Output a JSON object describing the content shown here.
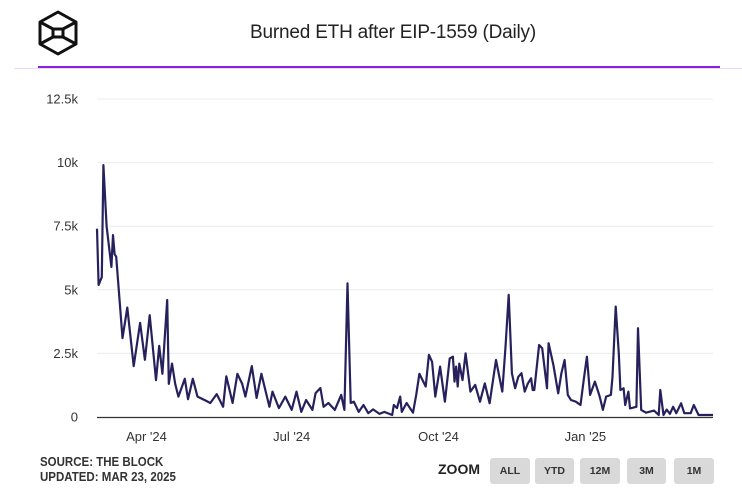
{
  "header": {
    "title": "Burned ETH after EIP-1559 (Daily)",
    "logo": "the-block-cube-logo"
  },
  "footer": {
    "source": "SOURCE: THE BLOCK",
    "updated": "UPDATED: MAR 23, 2025"
  },
  "zoom": {
    "label": "ZOOM",
    "buttons": [
      "ALL",
      "YTD",
      "12M",
      "3M",
      "1M"
    ]
  },
  "colors": {
    "line": "#26215c",
    "accent_rule": "#8a1fe0",
    "button_bg": "#d9d9d9"
  },
  "chart_data": {
    "type": "line",
    "title": "Burned ETH after EIP-1559 (Daily)",
    "xlabel": "",
    "ylabel": "",
    "xlim": [
      "2024-03-01",
      "2025-03-22"
    ],
    "ylim": [
      0,
      12500
    ],
    "grid": true,
    "x_ticks": [
      {
        "date": "2024-04-01",
        "label": "Apr '24"
      },
      {
        "date": "2024-07-01",
        "label": "Jul '24"
      },
      {
        "date": "2024-10-01",
        "label": "Oct '24"
      },
      {
        "date": "2025-01-01",
        "label": "Jan '25"
      }
    ],
    "y_ticks": [
      {
        "value": 0,
        "label": "0"
      },
      {
        "value": 2500,
        "label": "2.5k"
      },
      {
        "value": 5000,
        "label": "5k"
      },
      {
        "value": 7500,
        "label": "7.5k"
      },
      {
        "value": 10000,
        "label": "10k"
      },
      {
        "value": 12500,
        "label": "12.5k"
      }
    ],
    "points": [
      [
        "2024-03-01",
        7400
      ],
      [
        "2024-03-02",
        5190
      ],
      [
        "2024-03-04",
        5500
      ],
      [
        "2024-03-05",
        9900
      ],
      [
        "2024-03-07",
        7500
      ],
      [
        "2024-03-10",
        5900
      ],
      [
        "2024-03-11",
        7150
      ],
      [
        "2024-03-12",
        6400
      ],
      [
        "2024-03-13",
        6300
      ],
      [
        "2024-03-17",
        3100
      ],
      [
        "2024-03-20",
        4300
      ],
      [
        "2024-03-24",
        2000
      ],
      [
        "2024-03-28",
        3700
      ],
      [
        "2024-03-31",
        2250
      ],
      [
        "2024-04-03",
        4000
      ],
      [
        "2024-04-07",
        1450
      ],
      [
        "2024-04-09",
        2800
      ],
      [
        "2024-04-11",
        1700
      ],
      [
        "2024-04-14",
        4600
      ],
      [
        "2024-04-15",
        1300
      ],
      [
        "2024-04-17",
        2100
      ],
      [
        "2024-04-19",
        1300
      ],
      [
        "2024-04-21",
        800
      ],
      [
        "2024-04-25",
        1500
      ],
      [
        "2024-04-27",
        700
      ],
      [
        "2024-04-30",
        1500
      ],
      [
        "2024-05-03",
        800
      ],
      [
        "2024-05-08",
        650
      ],
      [
        "2024-05-11",
        550
      ],
      [
        "2024-05-15",
        900
      ],
      [
        "2024-05-19",
        400
      ],
      [
        "2024-05-21",
        1600
      ],
      [
        "2024-05-25",
        550
      ],
      [
        "2024-05-28",
        1700
      ],
      [
        "2024-05-31",
        1300
      ],
      [
        "2024-06-02",
        800
      ],
      [
        "2024-06-06",
        2000
      ],
      [
        "2024-06-09",
        750
      ],
      [
        "2024-06-12",
        1700
      ],
      [
        "2024-06-17",
        400
      ],
      [
        "2024-06-19",
        1000
      ],
      [
        "2024-06-23",
        350
      ],
      [
        "2024-06-27",
        800
      ],
      [
        "2024-07-01",
        280
      ],
      [
        "2024-07-04",
        1000
      ],
      [
        "2024-07-07",
        200
      ],
      [
        "2024-07-10",
        670
      ],
      [
        "2024-07-14",
        280
      ],
      [
        "2024-07-16",
        940
      ],
      [
        "2024-07-19",
        1140
      ],
      [
        "2024-07-21",
        400
      ],
      [
        "2024-07-24",
        550
      ],
      [
        "2024-07-28",
        280
      ],
      [
        "2024-08-01",
        870
      ],
      [
        "2024-08-03",
        280
      ],
      [
        "2024-08-05",
        5250
      ],
      [
        "2024-08-07",
        550
      ],
      [
        "2024-08-09",
        600
      ],
      [
        "2024-08-12",
        200
      ],
      [
        "2024-08-15",
        470
      ],
      [
        "2024-08-18",
        150
      ],
      [
        "2024-08-21",
        300
      ],
      [
        "2024-08-25",
        120
      ],
      [
        "2024-08-28",
        200
      ],
      [
        "2024-09-02",
        80
      ],
      [
        "2024-09-03",
        470
      ],
      [
        "2024-09-05",
        350
      ],
      [
        "2024-09-07",
        800
      ],
      [
        "2024-09-08",
        200
      ],
      [
        "2024-09-11",
        550
      ],
      [
        "2024-09-15",
        170
      ],
      [
        "2024-09-17",
        870
      ],
      [
        "2024-09-19",
        1700
      ],
      [
        "2024-09-23",
        1200
      ],
      [
        "2024-09-25",
        2440
      ],
      [
        "2024-09-27",
        2170
      ],
      [
        "2024-09-29",
        800
      ],
      [
        "2024-10-02",
        1980
      ],
      [
        "2024-10-05",
        600
      ],
      [
        "2024-10-08",
        2300
      ],
      [
        "2024-10-10",
        2370
      ],
      [
        "2024-10-11",
        1390
      ],
      [
        "2024-10-12",
        1980
      ],
      [
        "2024-10-13",
        1200
      ],
      [
        "2024-10-14",
        2100
      ],
      [
        "2024-10-16",
        1450
      ],
      [
        "2024-10-18",
        2500
      ],
      [
        "2024-10-21",
        1000
      ],
      [
        "2024-10-24",
        1260
      ],
      [
        "2024-10-27",
        600
      ],
      [
        "2024-10-30",
        1320
      ],
      [
        "2024-11-02",
        540
      ],
      [
        "2024-11-06",
        2240
      ],
      [
        "2024-11-10",
        1000
      ],
      [
        "2024-11-12",
        2760
      ],
      [
        "2024-11-14",
        4800
      ],
      [
        "2024-11-16",
        1720
      ],
      [
        "2024-11-18",
        1130
      ],
      [
        "2024-11-20",
        1580
      ],
      [
        "2024-11-22",
        1720
      ],
      [
        "2024-11-24",
        1000
      ],
      [
        "2024-11-26",
        1320
      ],
      [
        "2024-11-28",
        1520
      ],
      [
        "2024-11-29",
        1060
      ],
      [
        "2024-11-30",
        1060
      ],
      [
        "2024-12-03",
        2830
      ],
      [
        "2024-12-05",
        2700
      ],
      [
        "2024-12-08",
        1130
      ],
      [
        "2024-12-09",
        2900
      ],
      [
        "2024-12-12",
        2040
      ],
      [
        "2024-12-15",
        930
      ],
      [
        "2024-12-17",
        1720
      ],
      [
        "2024-12-19",
        2240
      ],
      [
        "2024-12-21",
        870
      ],
      [
        "2024-12-23",
        670
      ],
      [
        "2024-12-26",
        600
      ],
      [
        "2024-12-29",
        470
      ],
      [
        "2024-12-31",
        1450
      ],
      [
        "2025-01-02",
        2370
      ],
      [
        "2025-01-04",
        870
      ],
      [
        "2025-01-07",
        1390
      ],
      [
        "2025-01-10",
        800
      ],
      [
        "2025-01-12",
        280
      ],
      [
        "2025-01-14",
        800
      ],
      [
        "2025-01-17",
        870
      ],
      [
        "2025-01-18",
        1580
      ],
      [
        "2025-01-20",
        4340
      ],
      [
        "2025-01-22",
        2500
      ],
      [
        "2025-01-23",
        1060
      ],
      [
        "2025-01-25",
        1130
      ],
      [
        "2025-01-26",
        470
      ],
      [
        "2025-01-28",
        1000
      ],
      [
        "2025-01-29",
        340
      ],
      [
        "2025-02-02",
        400
      ],
      [
        "2025-02-03",
        3490
      ],
      [
        "2025-02-05",
        280
      ],
      [
        "2025-02-08",
        170
      ],
      [
        "2025-02-13",
        250
      ],
      [
        "2025-02-16",
        80
      ],
      [
        "2025-02-17",
        1060
      ],
      [
        "2025-02-19",
        80
      ],
      [
        "2025-02-21",
        290
      ],
      [
        "2025-02-23",
        120
      ],
      [
        "2025-02-25",
        400
      ],
      [
        "2025-02-27",
        150
      ],
      [
        "2025-03-02",
        540
      ],
      [
        "2025-03-04",
        150
      ],
      [
        "2025-03-08",
        150
      ],
      [
        "2025-03-10",
        470
      ],
      [
        "2025-03-13",
        80
      ],
      [
        "2025-03-22",
        80
      ]
    ]
  }
}
